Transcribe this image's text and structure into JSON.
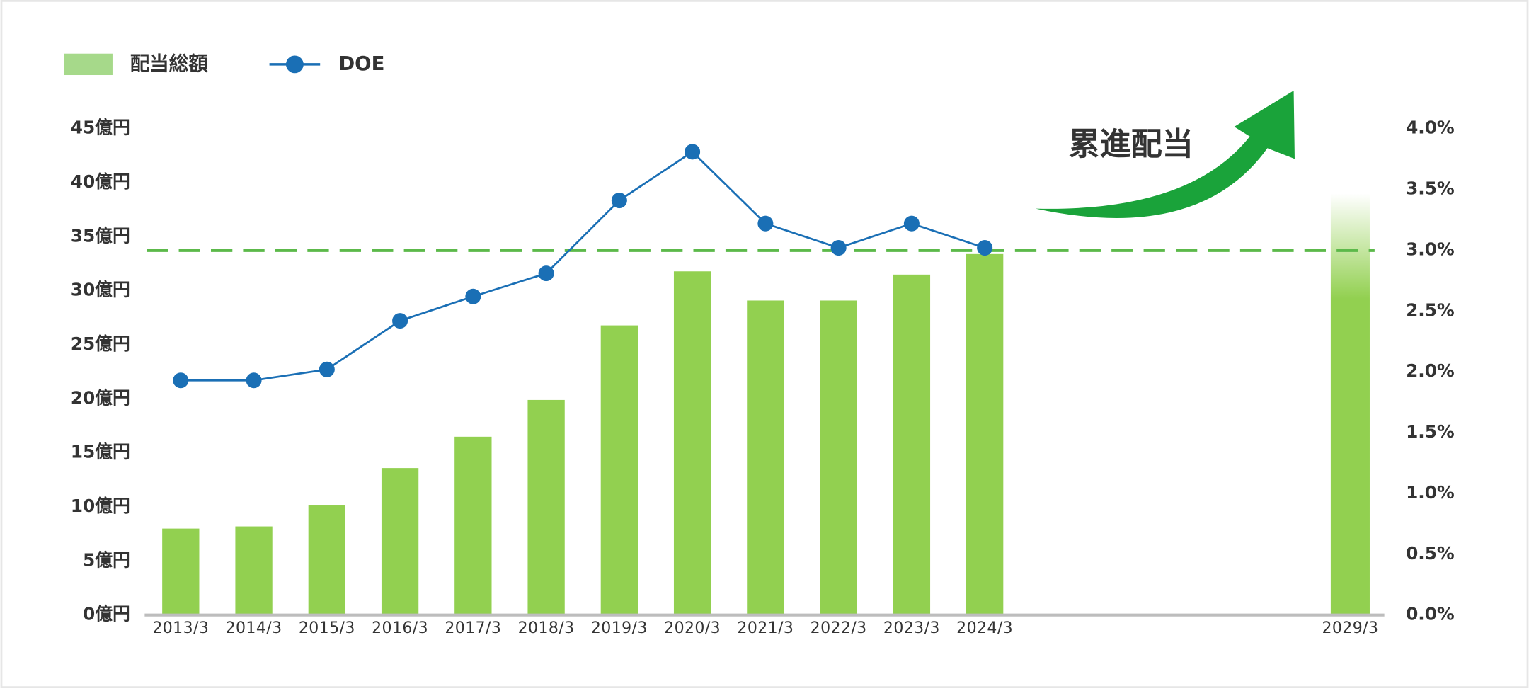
{
  "chart_data": {
    "type": "bar-line",
    "categories": [
      "2013/3",
      "2014/3",
      "2015/3",
      "2016/3",
      "2017/3",
      "2018/3",
      "2019/3",
      "2020/3",
      "2021/3",
      "2022/3",
      "2023/3",
      "2024/3",
      null,
      null,
      null,
      null,
      "2029/3"
    ],
    "series": [
      {
        "name": "配当総額",
        "type": "bar",
        "color": "#92d050",
        "legend_color": "#a6d98a",
        "fade_last": true,
        "values": [
          8,
          8.2,
          10.2,
          13.6,
          16.5,
          19.9,
          26.8,
          31.8,
          29.1,
          29.1,
          31.5,
          33.4,
          null,
          null,
          null,
          null,
          39
        ]
      },
      {
        "name": "DOE",
        "type": "line",
        "axis": "y2",
        "color": "#1a6fb5",
        "values": [
          1.93,
          1.93,
          2.02,
          2.42,
          2.62,
          2.81,
          3.41,
          3.81,
          3.22,
          3.02,
          3.22,
          3.02,
          null,
          null,
          null,
          null,
          null
        ]
      }
    ],
    "ylim": [
      0,
      45
    ],
    "yticks": [
      {
        "value": 0,
        "label": "0億円"
      },
      {
        "value": 5,
        "label": "5億円"
      },
      {
        "value": 10,
        "label": "10億円"
      },
      {
        "value": 15,
        "label": "15億円"
      },
      {
        "value": 20,
        "label": "20億円"
      },
      {
        "value": 25,
        "label": "25億円"
      },
      {
        "value": 30,
        "label": "30億円"
      },
      {
        "value": 35,
        "label": "35億円"
      },
      {
        "value": 40,
        "label": "40億円"
      },
      {
        "value": 45,
        "label": "45億円"
      }
    ],
    "y2lim": [
      0,
      4
    ],
    "y2ticks": [
      {
        "value": 0,
        "label": "0.0%"
      },
      {
        "value": 0.5,
        "label": "0.5%"
      },
      {
        "value": 1,
        "label": "1.0%"
      },
      {
        "value": 1.5,
        "label": "1.5%"
      },
      {
        "value": 2,
        "label": "2.0%"
      },
      {
        "value": 2.5,
        "label": "2.5%"
      },
      {
        "value": 3,
        "label": "3.0%"
      },
      {
        "value": 3.5,
        "label": "3.5%"
      },
      {
        "value": 4,
        "label": "4.0%"
      }
    ],
    "reference_line": {
      "value": 3,
      "axis": "y2",
      "color": "#5cb94a"
    },
    "annotation": {
      "text": "累進配当",
      "color": "#1a9e3a"
    },
    "grid": false
  }
}
